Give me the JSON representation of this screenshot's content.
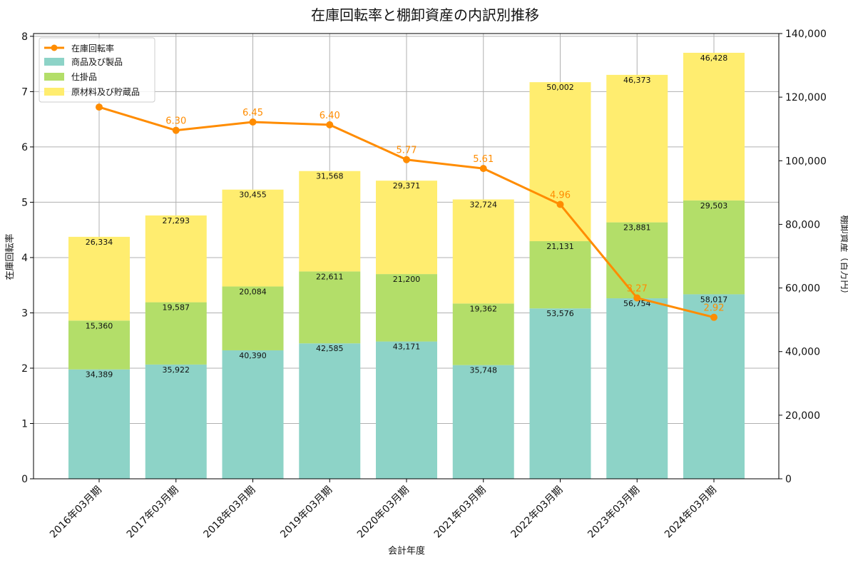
{
  "chart_data": {
    "type": "bar+line",
    "title": "在庫回転率と棚卸資産の内訳別推移",
    "xlabel": "会計年度",
    "ylabel_left": "在庫回転率",
    "ylabel_right": "棚卸資産（百万円）",
    "categories": [
      "2016年03月期",
      "2017年03月期",
      "2018年03月期",
      "2019年03月期",
      "2020年03月期",
      "2021年03月期",
      "2022年03月期",
      "2023年03月期",
      "2024年03月期"
    ],
    "bar_series": [
      {
        "name": "商品及び製品",
        "color": "#8dd3c7",
        "values": [
          34389,
          35922,
          40390,
          42585,
          43171,
          35748,
          53576,
          56754,
          58017
        ],
        "labels": [
          "34,389",
          "35,922",
          "40,390",
          "42,585",
          "43,171",
          "35,748",
          "53,576",
          "56,754",
          "58,017"
        ]
      },
      {
        "name": "仕掛品",
        "color": "#b3de69",
        "values": [
          15360,
          19587,
          20084,
          22611,
          21200,
          19362,
          21131,
          23881,
          29503
        ],
        "labels": [
          "15,360",
          "19,587",
          "20,084",
          "22,611",
          "21,200",
          "19,362",
          "21,131",
          "23,881",
          "29,503"
        ]
      },
      {
        "name": "原材料及び貯蔵品",
        "color": "#ffed6f",
        "values": [
          26334,
          27293,
          30455,
          31568,
          29371,
          32724,
          50002,
          46373,
          46428
        ],
        "labels": [
          "26,334",
          "27,293",
          "30,455",
          "31,568",
          "29,371",
          "32,724",
          "50,002",
          "46,373",
          "46,428"
        ]
      }
    ],
    "line_series": {
      "name": "在庫回転率",
      "color": "#ff8c00",
      "values": [
        6.72,
        6.3,
        6.45,
        6.4,
        5.77,
        5.61,
        4.96,
        3.27,
        2.92
      ],
      "labels": [
        "",
        "6.30",
        "6.45",
        "6.40",
        "5.77",
        "5.61",
        "4.96",
        "3.27",
        "2.92"
      ]
    },
    "ylim_left": [
      0,
      8.05
    ],
    "yticks_left": [
      "0",
      "1",
      "2",
      "3",
      "4",
      "5",
      "6",
      "7",
      "8"
    ],
    "ylim_right": [
      0,
      140000
    ],
    "yticks_right": [
      "0",
      "20,000",
      "40,000",
      "60,000",
      "80,000",
      "100,000",
      "120,000",
      "140,000"
    ],
    "grid": true,
    "legend_position": "top-left"
  }
}
